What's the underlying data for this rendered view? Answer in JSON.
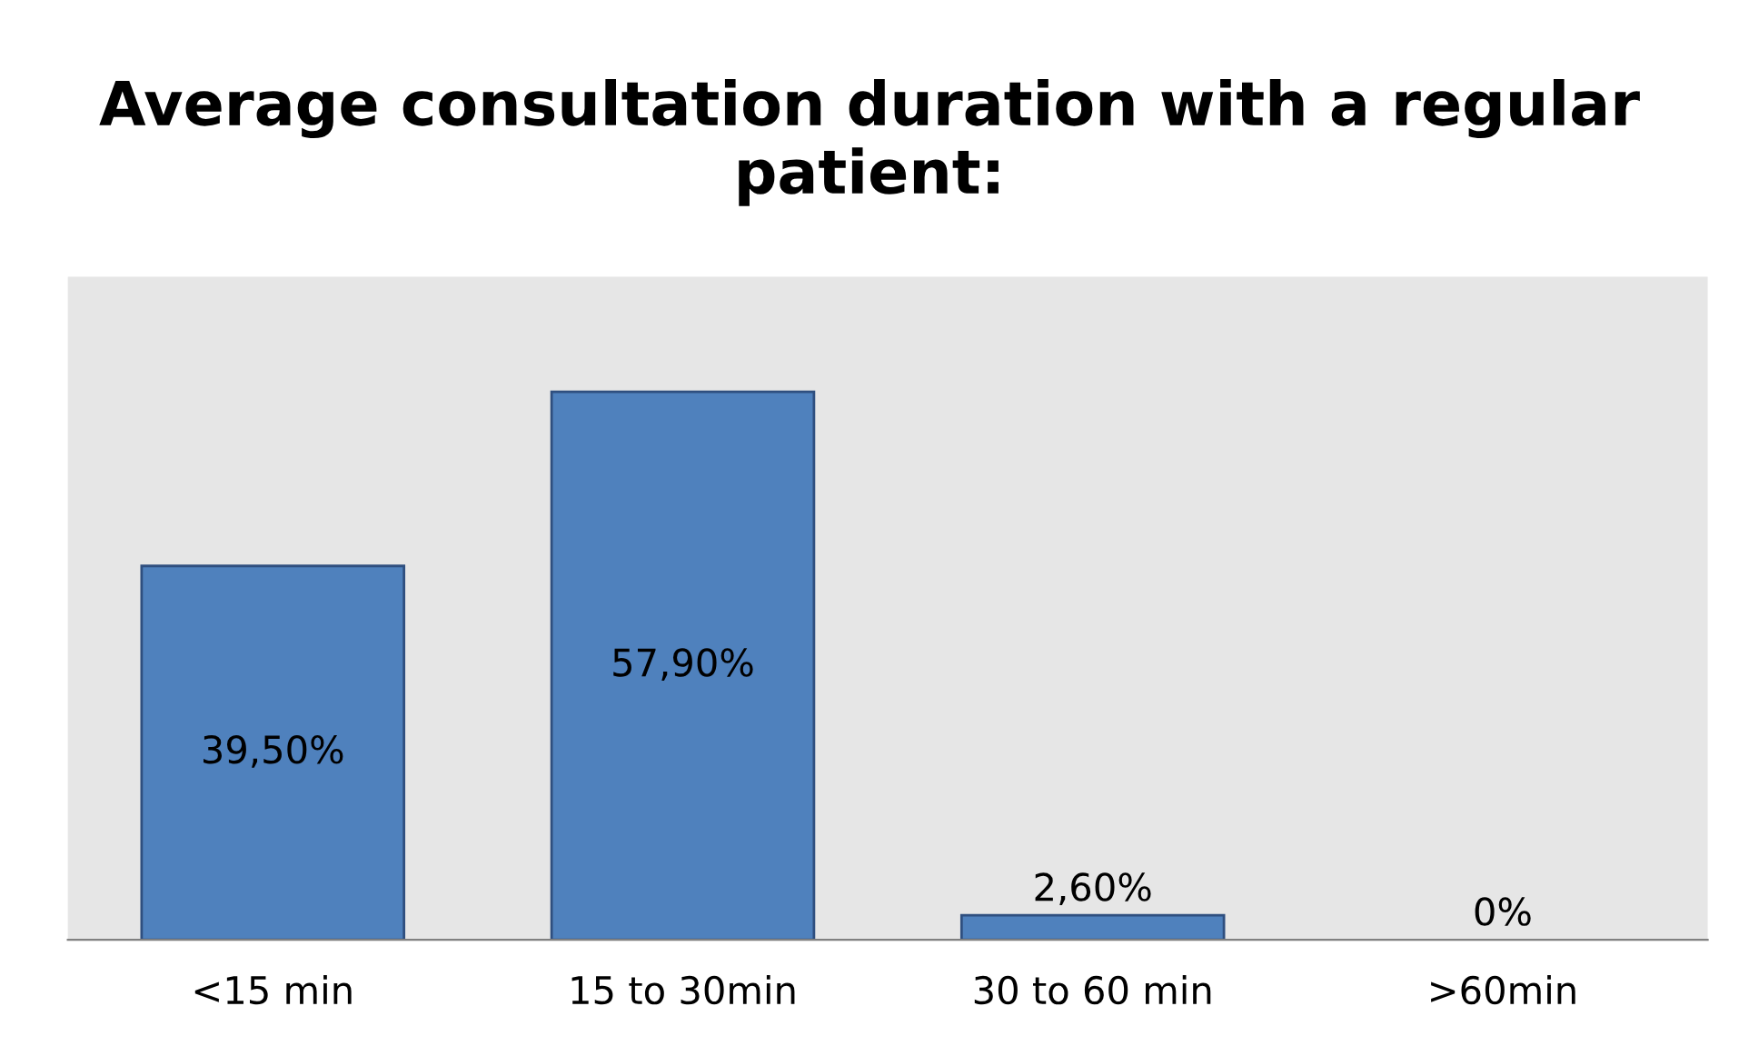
{
  "chart_data": {
    "type": "bar",
    "title": "Average consultation duration with a regular patient:",
    "categories": [
      "<15 min",
      "15 to 30min",
      "30 to 60 min",
      ">60min"
    ],
    "values": [
      39.5,
      57.9,
      2.6,
      0
    ],
    "value_labels": [
      "39,50%",
      "57,90%",
      "2,60%",
      "0%"
    ],
    "color": "#4f81bd",
    "grid": false,
    "legend": false
  }
}
